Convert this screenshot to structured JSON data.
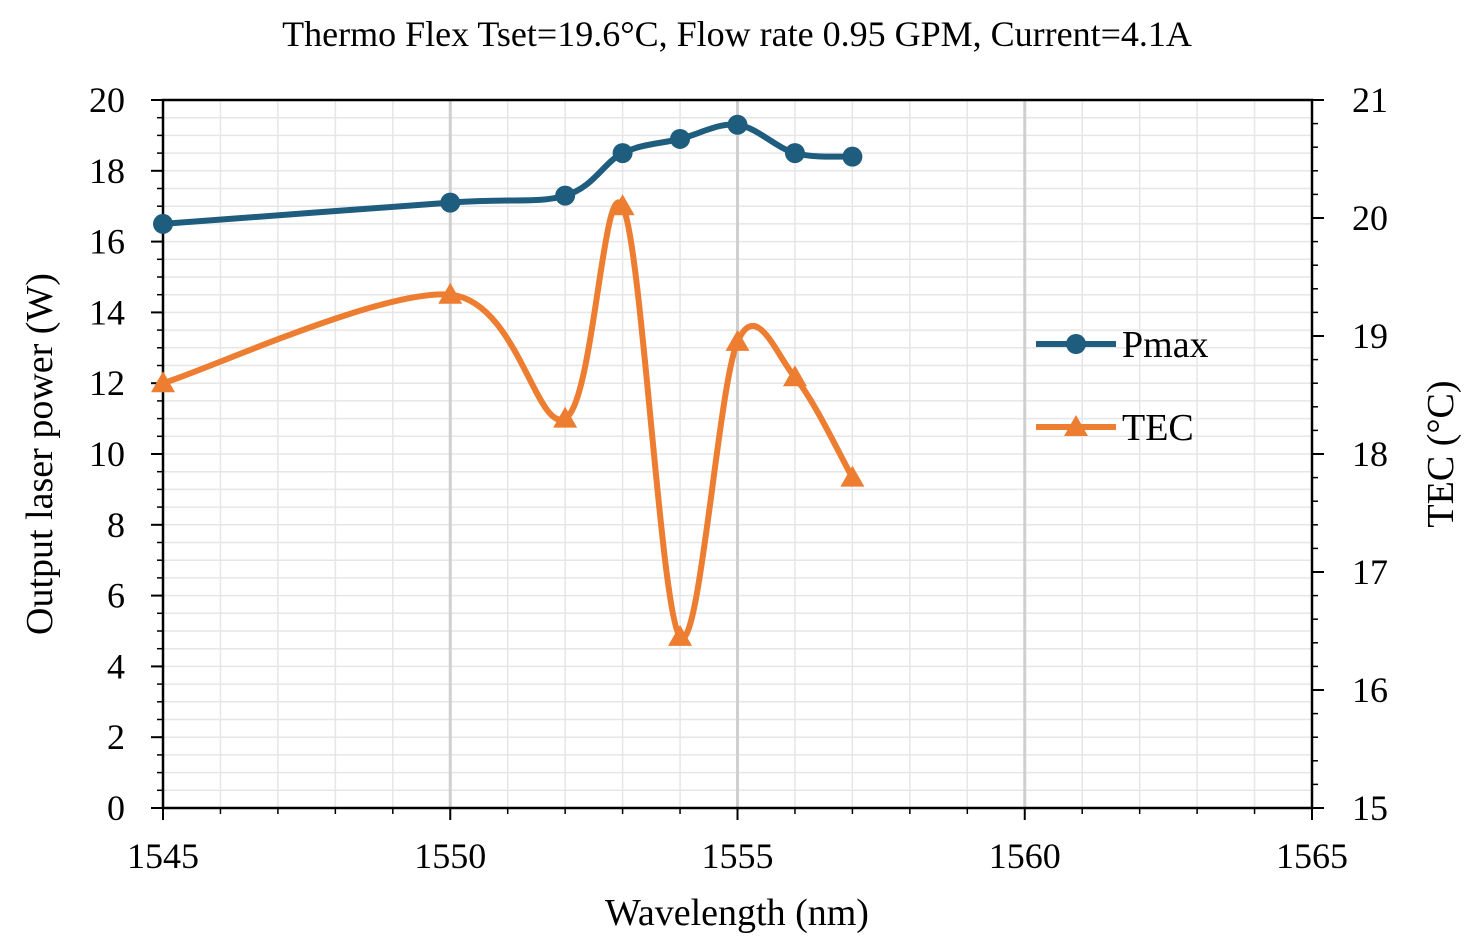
{
  "chart_data": {
    "type": "line",
    "title": "Thermo Flex Tset=19.6°C,  Flow rate 0.95 GPM, Current=4.1A",
    "xlabel": "Wavelength (nm)",
    "ylabel": "Output laser power (W)",
    "y2label": "TEC (°C)",
    "xlim": [
      1545,
      1565
    ],
    "ylim": [
      0,
      20
    ],
    "y2lim": [
      15,
      21
    ],
    "xticks": [
      1545,
      1550,
      1555,
      1560,
      1565
    ],
    "yticks": [
      0,
      2,
      4,
      6,
      8,
      10,
      12,
      14,
      16,
      18,
      20
    ],
    "y2ticks": [
      15,
      16,
      17,
      18,
      19,
      20,
      21
    ],
    "grid": true,
    "legend_position": "right",
    "series": [
      {
        "name": "Pmax",
        "axis": "left",
        "marker": "circle",
        "color": "#1f5d7e",
        "x": [
          1545,
          1550,
          1552,
          1553,
          1554,
          1555,
          1556,
          1557
        ],
        "y": [
          16.5,
          17.1,
          17.3,
          18.5,
          18.9,
          19.3,
          18.5,
          18.4
        ]
      },
      {
        "name": "TEC",
        "axis": "right",
        "marker": "triangle",
        "color": "#ed7d31",
        "x": [
          1545,
          1550,
          1552,
          1553,
          1554,
          1555,
          1556,
          1557
        ],
        "y": [
          18.6,
          19.35,
          18.3,
          20.1,
          16.45,
          18.95,
          18.65,
          17.8
        ]
      }
    ]
  }
}
